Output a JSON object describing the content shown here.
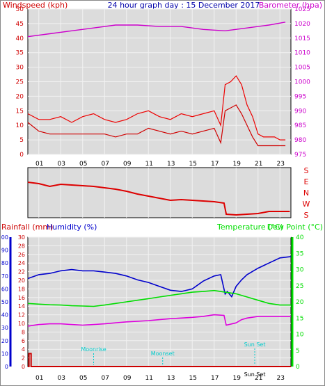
{
  "header": {
    "left_label": "Windspeed (kph)",
    "center_title": "24 hour graph day : 15 December 2017",
    "right_label": "Barometer (hpa)"
  },
  "colors": {
    "wind": "#d00000",
    "gust": "#ee0000",
    "baro": "#cc00cc",
    "dir": "#dd0000",
    "rain": "#cc0000",
    "humidity": "#0000cc",
    "temp": "#00dd00",
    "dew": "#dd00dd",
    "astro": "#00cccc",
    "plot_bg": "#dcdcdc",
    "grid": "#f2f2f2"
  },
  "bottom_header": {
    "rain_label": "Rainfall (mm)",
    "hum_label": "Humidity (%)",
    "temp_label": "Temperature (°C)",
    "dew_label": "Dew Point (°C)"
  },
  "direction_labels": [
    "S",
    "E",
    "N",
    "W",
    "S"
  ],
  "astro_events": [
    {
      "label": "Moonrise",
      "hour": 6.0
    },
    {
      "label": "Moonset",
      "hour": 12.3
    },
    {
      "label": "Sun Set",
      "hour": 20.7
    },
    {
      "label": "Sun Set",
      "hour": 20.7
    }
  ],
  "chart_data": [
    {
      "type": "line",
      "title": "24 hour graph day : 15 December 2017",
      "xlabel": "",
      "ylabel": "Windspeed (kph)",
      "y2label": "Barometer (hpa)",
      "x_ticks": [
        "01",
        "03",
        "05",
        "07",
        "09",
        "11",
        "13",
        "15",
        "17",
        "19",
        "21",
        "23"
      ],
      "ylim": [
        0,
        50
      ],
      "y_ticks": [
        0,
        5,
        10,
        15,
        20,
        25,
        30,
        35,
        40,
        45,
        50
      ],
      "y2lim": [
        975,
        1025
      ],
      "y2_ticks": [
        975,
        980,
        985,
        990,
        995,
        1000,
        1005,
        1010,
        1015,
        1020,
        1025
      ],
      "series": [
        {
          "key": "gust",
          "axis": "left",
          "x": [
            0,
            1,
            2,
            3,
            4,
            5,
            6,
            7,
            8,
            9,
            10,
            11,
            12,
            13,
            14,
            15,
            16,
            17,
            17.6,
            18,
            18.5,
            19,
            19.5,
            20,
            20.5,
            21,
            21.5,
            22,
            22.5,
            23,
            23.5
          ],
          "values": [
            14,
            12,
            12,
            13,
            11,
            13,
            14,
            12,
            11,
            12,
            14,
            15,
            13,
            12,
            14,
            13,
            14,
            15,
            10,
            24,
            25,
            27,
            24,
            17,
            13,
            7,
            6,
            6,
            6,
            5,
            5
          ]
        },
        {
          "key": "wind",
          "axis": "left",
          "x": [
            0,
            1,
            2,
            3,
            4,
            5,
            6,
            7,
            8,
            9,
            10,
            11,
            12,
            13,
            14,
            15,
            16,
            17,
            17.6,
            18,
            18.5,
            19,
            19.5,
            20,
            20.5,
            21,
            21.5,
            22,
            22.5,
            23,
            23.5
          ],
          "values": [
            11,
            8,
            7,
            7,
            7,
            7,
            7,
            7,
            6,
            7,
            7,
            9,
            8,
            7,
            8,
            7,
            8,
            9,
            4,
            15,
            16,
            17,
            14,
            10,
            6,
            3,
            3,
            3,
            3,
            3,
            3
          ]
        },
        {
          "key": "baro",
          "axis": "right",
          "x": [
            0,
            2,
            4,
            6,
            8,
            10,
            12,
            14,
            16,
            18,
            20,
            22,
            23.5
          ],
          "values": [
            1015.5,
            1016.5,
            1017.5,
            1018.5,
            1019.5,
            1019.5,
            1019,
            1019,
            1018,
            1017.5,
            1018.5,
            1019.5,
            1020.5
          ]
        }
      ]
    },
    {
      "type": "line",
      "title": "",
      "ylabel": "",
      "y_labels": [
        "S",
        "E",
        "N",
        "W",
        "S"
      ],
      "series": [
        {
          "key": "dir",
          "x": [
            0,
            1,
            2,
            3,
            4,
            5,
            6,
            7,
            8,
            9,
            10,
            11,
            12,
            13,
            14,
            15,
            16,
            17,
            17.9,
            18.1,
            19,
            20,
            21,
            22,
            23,
            23.9
          ],
          "values": [
            210,
            200,
            180,
            195,
            190,
            185,
            180,
            170,
            160,
            145,
            125,
            110,
            95,
            80,
            85,
            80,
            75,
            70,
            60,
            -20,
            -25,
            -20,
            -15,
            0,
            0,
            0
          ]
        }
      ]
    },
    {
      "type": "line",
      "title": "",
      "ylabel": "Rainfall (mm)",
      "y2label": "Humidity (%)",
      "y3label": "Temperature (°C)",
      "y4label": "Dew Point (°C)",
      "x_ticks": [
        "01",
        "03",
        "05",
        "07",
        "09",
        "11",
        "13",
        "15",
        "17",
        "19",
        "21",
        "23"
      ],
      "rain_ylim": [
        0,
        30
      ],
      "rain_ticks": [
        0,
        2,
        4,
        6,
        8,
        10,
        12,
        14,
        16,
        18,
        20,
        22,
        24,
        26,
        28,
        30
      ],
      "hum_ylim": [
        0,
        100
      ],
      "hum_ticks": [
        0,
        10,
        20,
        30,
        40,
        50,
        60,
        70,
        80,
        90,
        100
      ],
      "temp_ylim": [
        0,
        40
      ],
      "temp_ticks": [
        0,
        5,
        10,
        15,
        20,
        25,
        30,
        35,
        40
      ],
      "series": [
        {
          "key": "rain",
          "axis": "rain",
          "x": [
            0,
            0.1,
            0.1,
            0.3,
            0.3,
            24
          ],
          "values": [
            0,
            0,
            3,
            3,
            0,
            0
          ]
        },
        {
          "key": "humidity",
          "axis": "hum",
          "x": [
            0,
            1,
            2,
            3,
            4,
            5,
            6,
            7,
            8,
            9,
            10,
            11,
            12,
            13,
            14,
            15,
            16,
            17,
            17.6,
            18,
            18.2,
            18.6,
            19,
            19.5,
            20,
            21,
            22,
            23,
            24
          ],
          "values": [
            68,
            71,
            72,
            74,
            75,
            74,
            74,
            73,
            72,
            70,
            67,
            65,
            62,
            59,
            58,
            60,
            66,
            70,
            71,
            56,
            58,
            54,
            62,
            67,
            71,
            76,
            80,
            84,
            85
          ]
        },
        {
          "key": "temp",
          "axis": "temp",
          "x": [
            0,
            1,
            2,
            3,
            4,
            5,
            6,
            7,
            8,
            9,
            10,
            11,
            12,
            13,
            14,
            15,
            16,
            17,
            18,
            19,
            20,
            21,
            22,
            23,
            24
          ],
          "values": [
            19.5,
            19.3,
            19.1,
            19,
            18.8,
            18.7,
            18.6,
            19,
            19.5,
            20,
            20.5,
            21,
            21.5,
            22,
            22.5,
            23,
            23.2,
            23.5,
            23,
            22.5,
            21.5,
            20.5,
            19.5,
            19,
            19
          ]
        },
        {
          "key": "dew",
          "axis": "temp",
          "x": [
            0,
            1,
            2,
            3,
            4,
            5,
            6,
            7,
            8,
            9,
            10,
            11,
            12,
            13,
            14,
            15,
            16,
            17,
            17.9,
            18.1,
            19,
            19.5,
            20,
            21,
            22,
            23,
            24
          ],
          "values": [
            12.5,
            13,
            13.2,
            13.2,
            13,
            12.8,
            13,
            13.2,
            13.5,
            13.8,
            14,
            14.2,
            14.5,
            14.8,
            15,
            15.2,
            15.5,
            16,
            15.8,
            12.8,
            13.5,
            14.5,
            15,
            15.5,
            15.5,
            15.5,
            15.5
          ]
        }
      ]
    }
  ]
}
